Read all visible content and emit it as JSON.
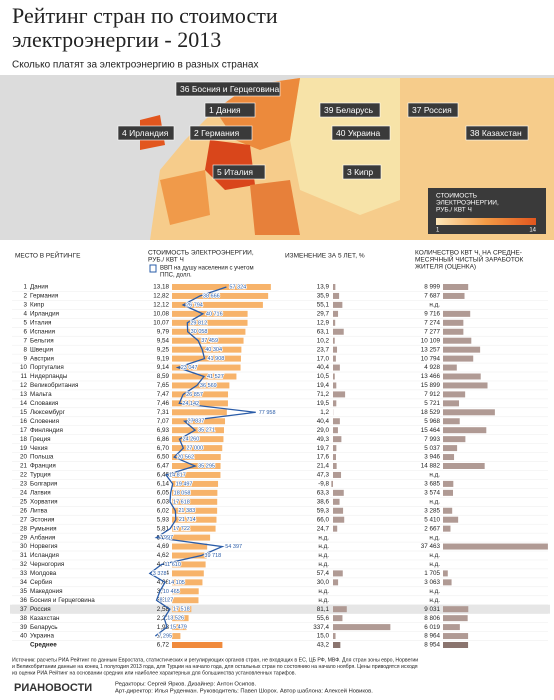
{
  "title": [
    "Рейтинг стран по стоимости",
    "электроэнергии - 2013"
  ],
  "subtitle": "Сколько платят за электроэнергию в разных странах",
  "map": {
    "labels": [
      "36 Босния и Герцеговина",
      "1 Дания",
      "4 Ирландия",
      "2 Германия",
      "39 Беларусь",
      "40 Украина",
      "37 Россия",
      "38 Казахстан",
      "5 Италия",
      "3 Кипр"
    ],
    "legend": {
      "title": [
        "СТОИМОСТЬ",
        "ЭЛЕКТРОЭНЕРГИИ,",
        "РУБ./ КВТ Ч"
      ],
      "min": "1",
      "max": "14"
    }
  },
  "table": {
    "headers": {
      "rank": "МЕСТО В РЕЙТИНГЕ",
      "cost": [
        "СТОИМОСТЬ ЭЛЕКТРОЭНЕРГИИ,",
        "РУБ./ КВТ Ч"
      ],
      "change": "ИЗМЕНЕНИЕ ЗА 5 ЛЕТ, %",
      "kwh": [
        "КОЛИЧЕСТВО КВТ Ч, НА СРЕДНЕ-",
        "МЕСЯЧНЫЙ ЧИСТЫЙ ЗАРАБОТОК",
        "ЖИТЕЛЯ (ОЦЕНКА)"
      ],
      "gdp_legend": [
        "ВВП на душу населения с учетом",
        "ППС, долл."
      ]
    },
    "rows": [
      [
        "1",
        "Дания",
        "13,18",
        "57 324",
        "13,9",
        "8 999"
      ],
      [
        "2",
        "Германия",
        "12,82",
        "38 666",
        "35,9",
        "7 687"
      ],
      [
        "3",
        "Кипр",
        "12,12",
        "26 794",
        "55,1",
        "н.д."
      ],
      [
        "4",
        "Ирландия",
        "10,08",
        "40 716",
        "29,7",
        "9 716"
      ],
      [
        "5",
        "Италия",
        "10,07",
        "29 812",
        "12,9",
        "7 274"
      ],
      [
        "6",
        "Испания",
        "9,79",
        "30 058",
        "63,1",
        "7 277"
      ],
      [
        "7",
        "Бельгия",
        "9,54",
        "37 459",
        "10,2",
        "10 109"
      ],
      [
        "8",
        "Швеция",
        "9,25",
        "40 304",
        "23,7",
        "13 257"
      ],
      [
        "9",
        "Австрия",
        "9,19",
        "41 908",
        "17,0",
        "10 794"
      ],
      [
        "10",
        "Португалия",
        "9,14",
        "23 047",
        "40,4",
        "4 928"
      ],
      [
        "11",
        "Нидерланды",
        "8,59",
        "41 527",
        "10,5",
        "13 466"
      ],
      [
        "12",
        "Великобритания",
        "7,65",
        "36 569",
        "19,4",
        "15 899"
      ],
      [
        "13",
        "Мальта",
        "7,47",
        "26 857",
        "71,2",
        "7 912"
      ],
      [
        "14",
        "Словакия",
        "7,46",
        "24 142",
        "19,5",
        "5 721"
      ],
      [
        "15",
        "Люксембург",
        "7,31",
        "77 958",
        "1,2",
        "18 529"
      ],
      [
        "16",
        "Словения",
        "7,07",
        "27 837",
        "40,4",
        "5 968"
      ],
      [
        "17",
        "Финляндия",
        "6,93",
        "35 271",
        "29,0",
        "15 464"
      ],
      [
        "18",
        "Греция",
        "6,86",
        "24 260",
        "49,3",
        "7 993"
      ],
      [
        "19",
        "Чехия",
        "6,70",
        "27 000",
        "19,7",
        "5 037"
      ],
      [
        "20",
        "Польша",
        "6,50",
        "20 562",
        "17,6",
        "3 946"
      ],
      [
        "21",
        "Франция",
        "6,47",
        "35 295",
        "21,4",
        "14 882"
      ],
      [
        "22",
        "Турция",
        "6,46",
        "14 817",
        "47,3",
        "н.д."
      ],
      [
        "23",
        "Болгария",
        "6,14",
        "19 497",
        "-9,8",
        "3 685"
      ],
      [
        "24",
        "Латвия",
        "6,05",
        "18 058",
        "63,3",
        "3 574"
      ],
      [
        "25",
        "Хорватия",
        "6,03",
        "17 618",
        "38,6",
        "н.д."
      ],
      [
        "26",
        "Литва",
        "6,02",
        "21 383",
        "59,3",
        "3 285"
      ],
      [
        "27",
        "Эстония",
        "5,93",
        "21 714",
        "66,0",
        "5 410"
      ],
      [
        "28",
        "Румыния",
        "5,81",
        "17 722",
        "24,7",
        "2 667"
      ],
      [
        "29",
        "Албания",
        "5,08",
        "7 997",
        "н.д.",
        "н.д."
      ],
      [
        "30",
        "Норвегия",
        "4,69",
        "54 397",
        "н.д.",
        "37 463"
      ],
      [
        "31",
        "Исландия",
        "4,62",
        "39 718",
        "н.д.",
        "н.д."
      ],
      [
        "32",
        "Черногория",
        "4,48",
        "11 610",
        "н.д.",
        "н.д."
      ],
      [
        "33",
        "Молдова",
        "4,24",
        "3 378",
        "57,4",
        "1 705"
      ],
      [
        "34",
        "Сербия",
        "4,06",
        "14 105",
        "30,0",
        "3 063"
      ],
      [
        "35",
        "Македония",
        "3,56",
        "10 465",
        "н.д.",
        "н.д."
      ],
      [
        "36",
        "Босния и Герцеговина",
        "3,53",
        "8 127",
        "н.д.",
        "н.д."
      ],
      [
        "37",
        "Россия",
        "2,58",
        "17 518",
        "81,1",
        "9 031"
      ],
      [
        "38",
        "Казахстан",
        "2,21",
        "13 526",
        "55,6",
        "8 806"
      ],
      [
        "39",
        "Беларусь",
        "1,93",
        "15 479",
        "337,4",
        "6 019"
      ],
      [
        "40",
        "Украина",
        "1,12",
        "7 295",
        "15,0",
        "8 964"
      ]
    ],
    "average": {
      "label": "Среднее",
      "cost": "6,72",
      "change": "43,2",
      "kwh": "8 954"
    }
  },
  "footer": {
    "source": [
      "Источник: расчеты РИА Рейтинг по данным Евростата, статистических и регулирующих органов стран, не входящих в ЕС, ЦБ РФ, МВФ. Для стран зоны евро, Норвегии",
      "и Великобритании данные на конец 1 полугодия 2013 года, для Турции на начало года, для остальных стран по состоянию на начало ноября. Цены приводятся исходя",
      "из оценки РИА Рейтинг на основании средних или наиболее характерных для большинства установленных тарифов."
    ],
    "logo": "РИАНОВОСТИ",
    "credits": [
      "Редакторы: Сергей Ярков. Дизайнер: Антон Осипов.",
      "Арт-директор: Илья Руденман. Руководитель: Павел Шорох. Автор шаблона: Алексей Новиков."
    ]
  }
}
